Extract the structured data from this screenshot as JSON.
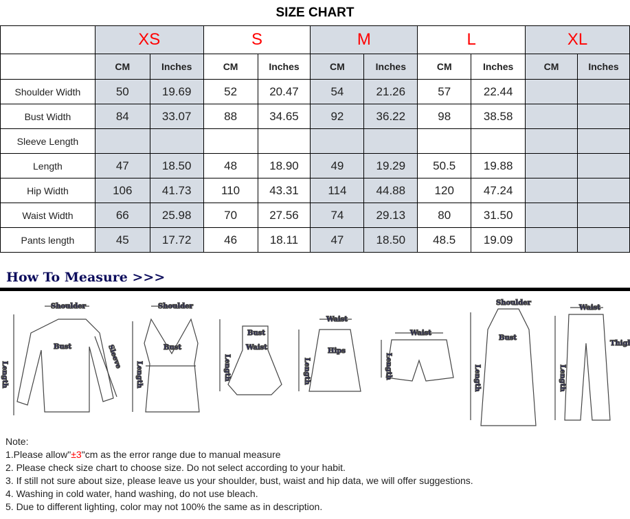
{
  "title": "SIZE CHART",
  "sizes": [
    "XS",
    "S",
    "M",
    "L",
    "XL"
  ],
  "units": [
    "CM",
    "Inches"
  ],
  "rows": [
    {
      "label": "Shoulder Width",
      "values": [
        "50",
        "19.69",
        "52",
        "20.47",
        "54",
        "21.26",
        "57",
        "22.44",
        "",
        ""
      ]
    },
    {
      "label": "Bust Width",
      "values": [
        "84",
        "33.07",
        "88",
        "34.65",
        "92",
        "36.22",
        "98",
        "38.58",
        "",
        ""
      ]
    },
    {
      "label": "Sleeve Length",
      "values": [
        "",
        "",
        "",
        "",
        "",
        "",
        "",
        "",
        "",
        ""
      ]
    },
    {
      "label": "Length",
      "values": [
        "47",
        "18.50",
        "48",
        "18.90",
        "49",
        "19.29",
        "50.5",
        "19.88",
        "",
        ""
      ]
    },
    {
      "label": "Hip Width",
      "values": [
        "106",
        "41.73",
        "110",
        "43.31",
        "114",
        "44.88",
        "120",
        "47.24",
        "",
        ""
      ]
    },
    {
      "label": "Waist Width",
      "values": [
        "66",
        "25.98",
        "70",
        "27.56",
        "74",
        "29.13",
        "80",
        "31.50",
        "",
        ""
      ]
    },
    {
      "label": "Pants length",
      "values": [
        "45",
        "17.72",
        "46",
        "18.11",
        "47",
        "18.50",
        "48.5",
        "19.09",
        "",
        ""
      ]
    }
  ],
  "how_to_measure": "How To Measure >>>",
  "measure_labels": {
    "shoulder": "Shoulder",
    "bust": "Bust",
    "sleeve": "Sleeve",
    "length": "Length",
    "waist": "Waist",
    "hips": "Hips",
    "thigh": "Thigh"
  },
  "notes": {
    "heading": "Note:",
    "n1_pre": "1.Please allow\"",
    "n1_red": "±3",
    "n1_post": "\"cm as the error range due to manual measure",
    "n2": "2. Please check size chart to choose size. Do not select according to your habit.",
    "n3": "3. If still not sure about size, please leave us your shoulder, bust, waist and hip data, we will offer suggestions.",
    "n4": "4. Washing in cold water, hand washing, do not use bleach.",
    "n5": "5. Due to different lighting, color may not 100% the same as in description."
  },
  "colors": {
    "size_label": "#ff0000",
    "shade": "#d6dce4",
    "measure_text": "#1a1a6e"
  }
}
